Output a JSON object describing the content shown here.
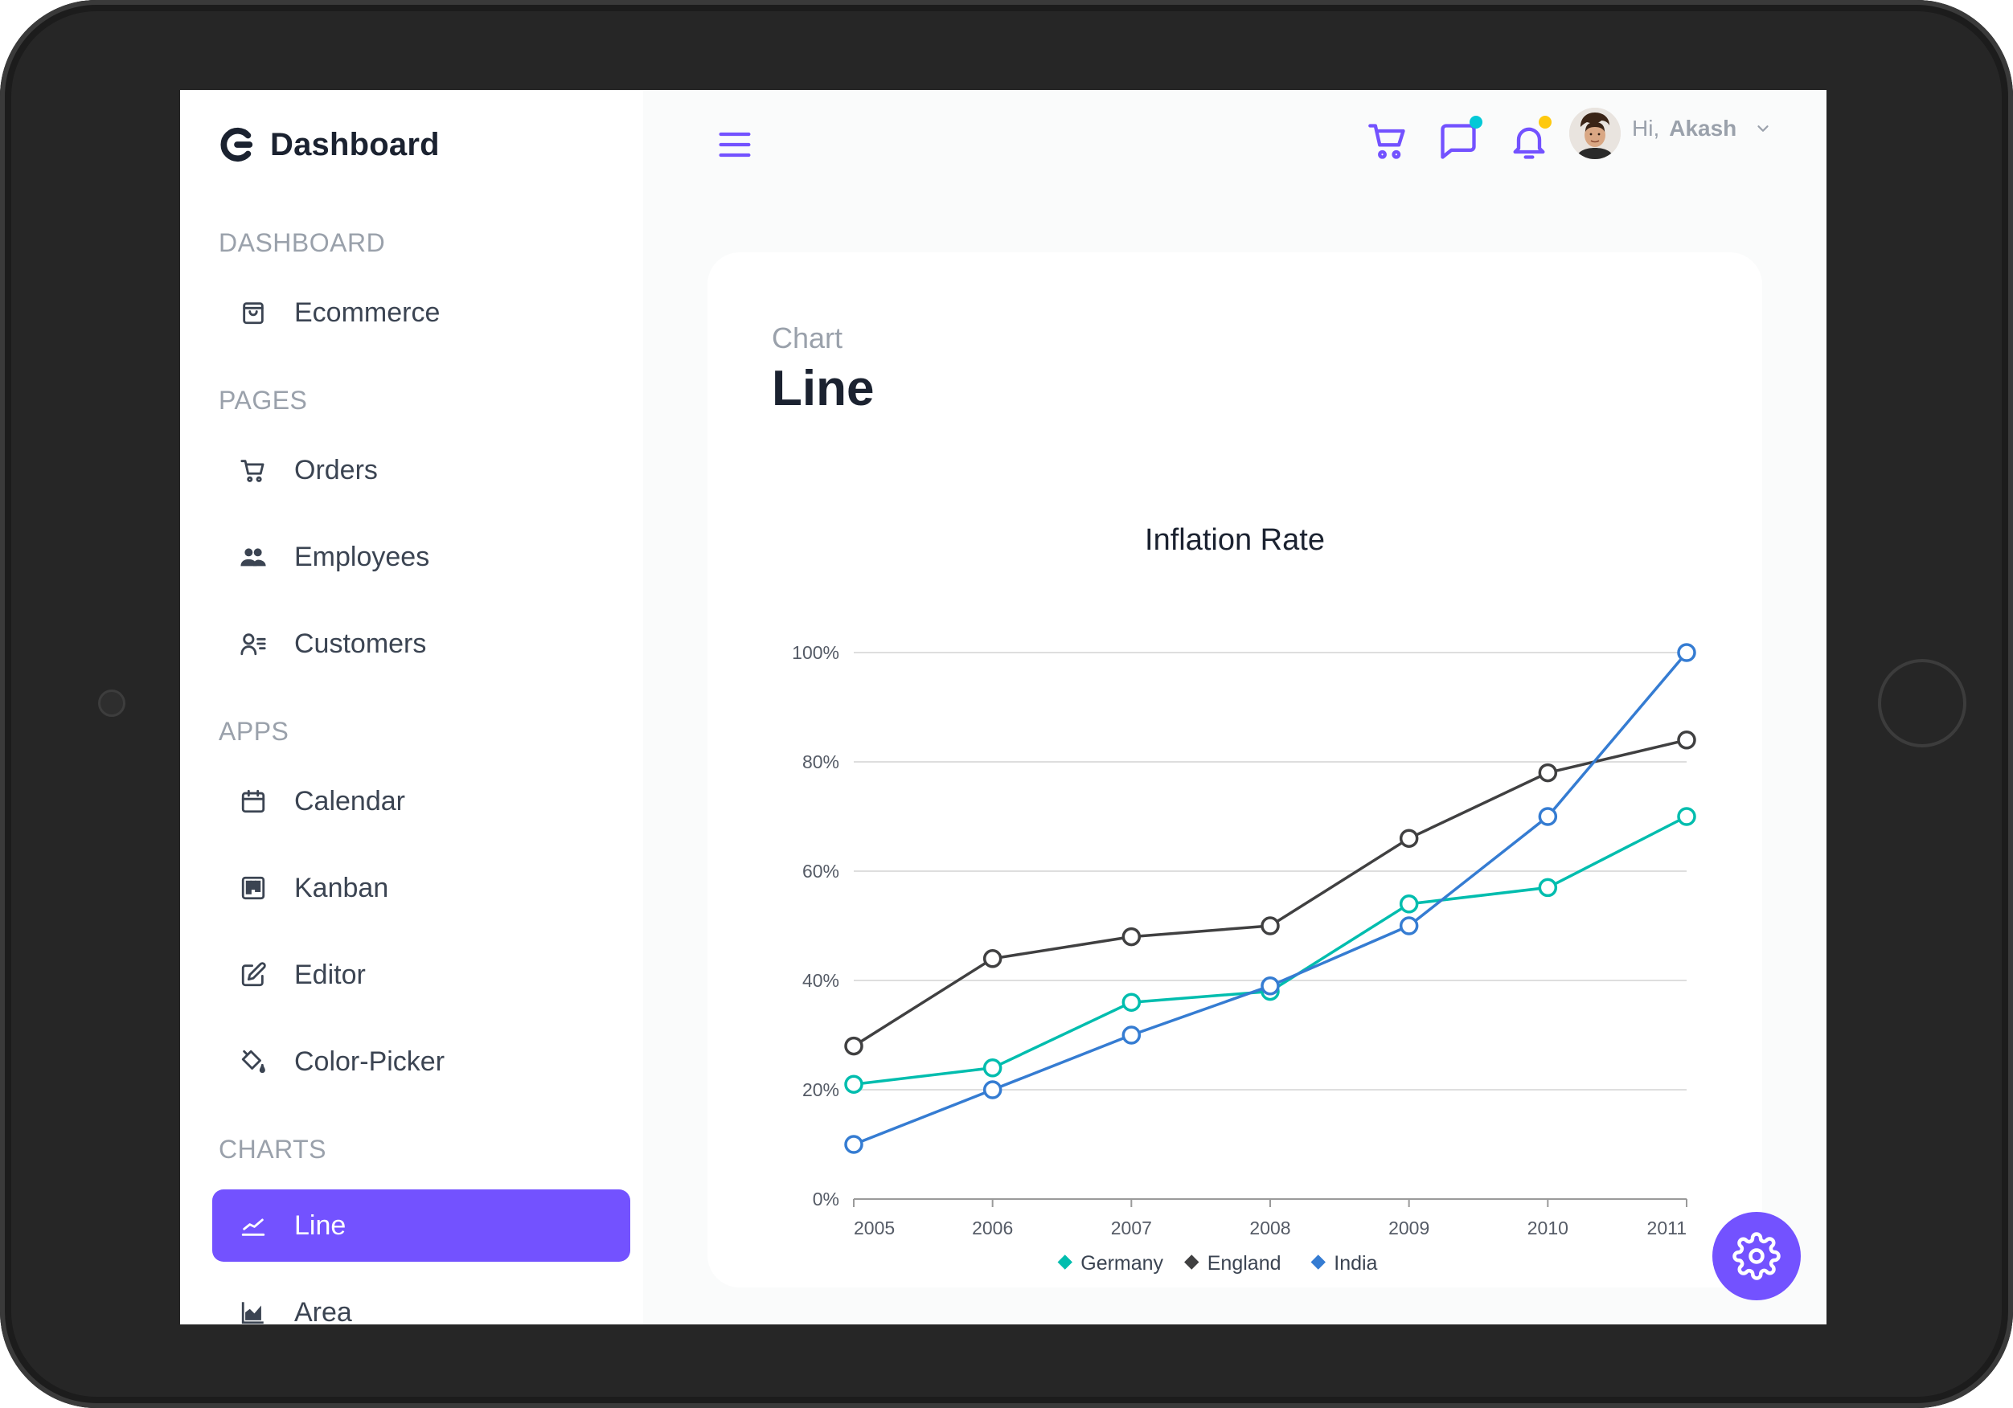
{
  "sidebar": {
    "brand": "Dashboard",
    "sections": {
      "dashboard": "DASHBOARD",
      "pages": "PAGES",
      "apps": "APPS",
      "charts": "CHARTS"
    },
    "items": {
      "ecommerce": "Ecommerce",
      "orders": "Orders",
      "employees": "Employees",
      "customers": "Customers",
      "calendar": "Calendar",
      "kanban": "Kanban",
      "editor": "Editor",
      "color_picker": "Color-Picker",
      "line": "Line",
      "area": "Area"
    },
    "active_item": "Line",
    "accent_color": "#7352ff"
  },
  "header": {
    "greeting": "Hi,",
    "user_name": "Akash",
    "icons": [
      "menu-icon",
      "cart-icon",
      "chat-icon",
      "bell-icon",
      "chevron-down-icon"
    ],
    "chat_dot_color": "#03c9d7",
    "bell_dot_color": "#fec90f"
  },
  "card": {
    "subtitle": "Chart",
    "title": "Line"
  },
  "chart_data": {
    "type": "line",
    "title": "Inflation Rate",
    "x": [
      "2005",
      "2006",
      "2007",
      "2008",
      "2009",
      "2010",
      "2011"
    ],
    "ylim": [
      0,
      100
    ],
    "yticks": [
      0,
      20,
      40,
      60,
      80,
      100
    ],
    "ytick_suffix": "%",
    "grid": true,
    "legend": "bottom-center",
    "series": [
      {
        "name": "Germany",
        "color": "#00bdae",
        "values": [
          21,
          24,
          36,
          38,
          54,
          57,
          70
        ]
      },
      {
        "name": "England",
        "color": "#404041",
        "values": [
          28,
          44,
          48,
          50,
          66,
          78,
          84
        ]
      },
      {
        "name": "India",
        "color": "#357cd2",
        "values": [
          10,
          20,
          30,
          39,
          50,
          70,
          100
        ]
      }
    ]
  }
}
